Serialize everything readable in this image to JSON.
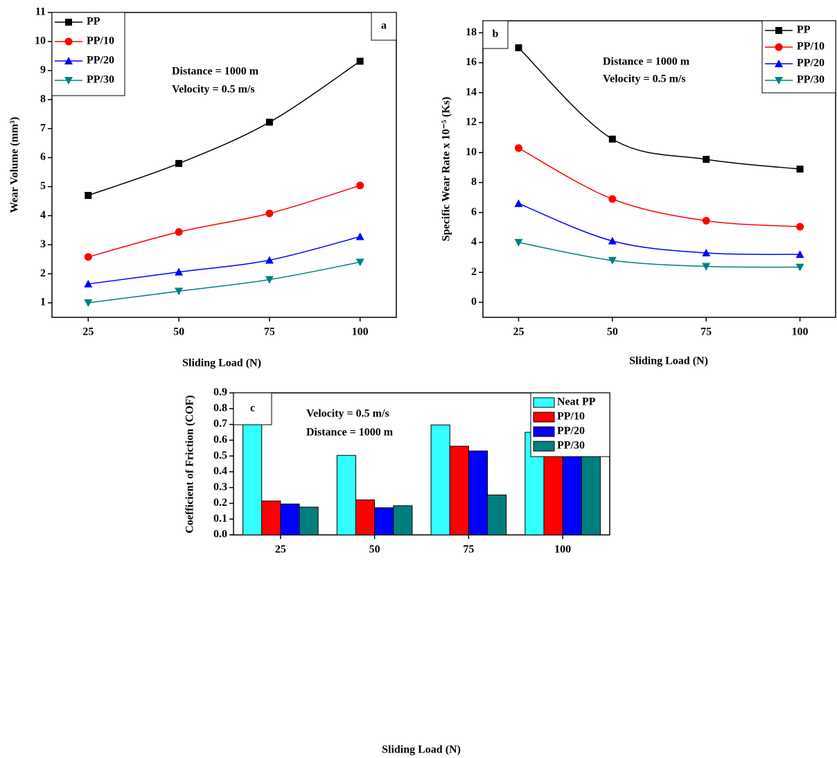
{
  "chart_data": [
    {
      "type": "line",
      "panel": "a",
      "x_label": "Sliding Load (N)",
      "y_label": "Wear Volume (mm³)",
      "annotations": [
        "Distance = 1000 m",
        "Velocity = 0.5 m/s"
      ],
      "x": [
        25,
        50,
        75,
        100
      ],
      "xlim": [
        15,
        110
      ],
      "xticks": [
        25,
        50,
        75,
        100
      ],
      "ylim": [
        0.5,
        11
      ],
      "yticks": [
        1,
        2,
        3,
        4,
        5,
        6,
        7,
        8,
        9,
        10,
        11
      ],
      "legend": "upper left",
      "series": [
        {
          "name": "PP",
          "color": "#000000",
          "marker": "square",
          "values": [
            4.7,
            5.8,
            7.22,
            9.32
          ]
        },
        {
          "name": "PP/10",
          "color": "#ff0000",
          "marker": "circle",
          "values": [
            2.58,
            3.44,
            4.08,
            5.04
          ]
        },
        {
          "name": "PP/20",
          "color": "#0000ff",
          "marker": "triangle",
          "values": [
            1.65,
            2.06,
            2.47,
            3.28
          ]
        },
        {
          "name": "PP/30",
          "color": "#008080",
          "marker": "triangle-down",
          "values": [
            1.0,
            1.4,
            1.8,
            2.4
          ]
        }
      ]
    },
    {
      "type": "line",
      "panel": "b",
      "x_label": "Sliding Load (N)",
      "y_label": "Specific Wear Rate x 10⁻⁵ (Ks)",
      "annotations": [
        "Distance = 1000 m",
        "Velocity = 0.5 m/s"
      ],
      "x": [
        25,
        50,
        75,
        100
      ],
      "xlim": [
        15.5,
        109.5
      ],
      "xticks": [
        25,
        50,
        75,
        100
      ],
      "ylim": [
        -1,
        18.8
      ],
      "yticks": [
        0,
        2,
        4,
        6,
        8,
        10,
        12,
        14,
        16,
        18
      ],
      "legend": "upper right",
      "series": [
        {
          "name": "PP",
          "color": "#000000",
          "marker": "square",
          "values": [
            17,
            10.9,
            9.55,
            8.9
          ]
        },
        {
          "name": "PP/10",
          "color": "#ff0000",
          "marker": "circle",
          "values": [
            10.3,
            6.9,
            5.45,
            5.05
          ]
        },
        {
          "name": "PP/20",
          "color": "#0000ff",
          "marker": "triangle",
          "values": [
            6.6,
            4.1,
            3.3,
            3.2
          ]
        },
        {
          "name": "PP/30",
          "color": "#008080",
          "marker": "triangle-down",
          "values": [
            4.0,
            2.8,
            2.4,
            2.35
          ]
        }
      ]
    },
    {
      "type": "bar",
      "panel": "c",
      "x_label": "Sliding Load (N)",
      "y_label": "Coefficient of Friction (COF) ",
      "annotations": [
        "Velocity = 0.5 m/s",
        "Distance = 1000 m"
      ],
      "categories": [
        "25",
        "50",
        "75",
        "100"
      ],
      "ylim": [
        0,
        0.9
      ],
      "yticks": [
        {
          "value": 0,
          "label": "0.0"
        },
        0.1,
        0.2,
        0.3,
        0.4,
        0.5,
        0.6,
        0.7,
        0.8,
        0.9
      ],
      "legend": "upper right",
      "series": [
        {
          "name": "Neat PP",
          "color": "#33ffff",
          "values": [
            0.703,
            0.504,
            0.697,
            0.65
          ]
        },
        {
          "name": "PP/10",
          "color": "#ff0000",
          "values": [
            0.215,
            0.222,
            0.562,
            0.62
          ]
        },
        {
          "name": "PP/20",
          "color": "#0000ff",
          "values": [
            0.196,
            0.172,
            0.532,
            0.603
          ]
        },
        {
          "name": "PP/30",
          "color": "#007f7f",
          "values": [
            0.176,
            0.185,
            0.253,
            0.51
          ]
        }
      ]
    }
  ]
}
